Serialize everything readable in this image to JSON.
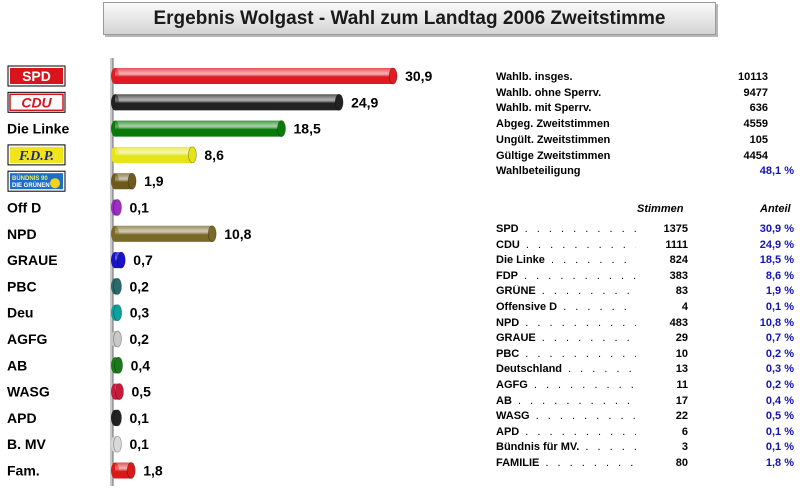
{
  "title": "Ergebnis Wolgast -  Wahl zum Landtag 2006 Zweitstimme",
  "colors": {
    "SPD": "#e01b22",
    "CDU": "#222222",
    "Die Linke": "#0a7a0a",
    "F.D.P.": "#e4e417",
    "Grüne": "#6e5a1e",
    "Off D": "#9b2fbf",
    "NPD": "#7a6a2a",
    "GRAUE": "#1a14c8",
    "PBC": "#2a6a6a",
    "Deu": "#10a0a0",
    "AGFG": "#c8c8c8",
    "AB": "#1a7a1a",
    "WASG": "#c81a3a",
    "APD": "#222222",
    "B. MV": "#d8d8d8",
    "Fam.": "#d81a1a"
  },
  "logos": {
    "spd": "SPD",
    "cdu": "CDU",
    "fdp": "F.D.P.",
    "gruene": "BÜNDNIS 90 DIE GRÜNEN"
  },
  "chart_data": {
    "type": "bar",
    "orientation": "horizontal",
    "categories": [
      "SPD",
      "CDU",
      "Die Linke",
      "F.D.P.",
      "Bündnis 90/Die Grünen",
      "Off D",
      "NPD",
      "GRAUE",
      "PBC",
      "Deu",
      "AGFG",
      "AB",
      "WASG",
      "APD",
      "B. MV",
      "Fam."
    ],
    "category_labels": [
      "",
      "",
      "Die Linke",
      "",
      "",
      "Off D",
      "NPD",
      "GRAUE",
      "PBC",
      "Deu",
      "AGFG",
      "AB",
      "WASG",
      "APD",
      "B. MV",
      "Fam."
    ],
    "value_labels": [
      "30,9",
      "24,9",
      "18,5",
      "8,6",
      "1,9",
      "0,1",
      "10,8",
      "0,7",
      "0,2",
      "0,3",
      "0,2",
      "0,4",
      "0,5",
      "0,1",
      "0,1",
      "1,8"
    ],
    "values": [
      30.9,
      24.9,
      18.5,
      8.6,
      1.9,
      0.1,
      10.8,
      0.7,
      0.2,
      0.3,
      0.2,
      0.4,
      0.5,
      0.1,
      0.1,
      1.8
    ],
    "xlim": [
      0,
      40
    ],
    "title": "Ergebnis Wolgast -  Wahl zum Landtag 2006 Zweitstimme",
    "xlabel": "",
    "ylabel": "",
    "grid": false,
    "legend": "none"
  },
  "stats": [
    {
      "label": "Wahlb. insges.",
      "value": "10113",
      "pct": ""
    },
    {
      "label": "Wahlb. ohne Sperrv.",
      "value": "9477",
      "pct": ""
    },
    {
      "label": "Wahlb. mit Sperrv.",
      "value": "636",
      "pct": ""
    },
    {
      "label": "Abgeg. Zweitstimmen",
      "value": "4559",
      "pct": ""
    },
    {
      "label": "Ungült. Zweitstimmen",
      "value": "105",
      "pct": ""
    },
    {
      "label": "Gültige Zweitstimmen",
      "value": "4454",
      "pct": ""
    },
    {
      "label": "Wahlbeteiligung",
      "value": "",
      "pct": "48,1 %"
    }
  ],
  "table": {
    "header_votes": "Stimmen",
    "header_share": "Anteil",
    "rows": [
      {
        "party": "SPD",
        "votes": "1375",
        "share": "30,9 %"
      },
      {
        "party": "CDU",
        "votes": "1111",
        "share": "24,9 %"
      },
      {
        "party": "Die Linke",
        "votes": "824",
        "share": "18,5 %"
      },
      {
        "party": "FDP",
        "votes": "383",
        "share": "8,6 %"
      },
      {
        "party": "GRÜNE",
        "votes": "83",
        "share": "1,9 %"
      },
      {
        "party": "Offensive D",
        "votes": "4",
        "share": "0,1 %"
      },
      {
        "party": "NPD",
        "votes": "483",
        "share": "10,8 %"
      },
      {
        "party": "GRAUE",
        "votes": "29",
        "share": "0,7 %"
      },
      {
        "party": "PBC",
        "votes": "10",
        "share": "0,2 %"
      },
      {
        "party": "Deutschland",
        "votes": "13",
        "share": "0,3 %"
      },
      {
        "party": "AGFG",
        "votes": "11",
        "share": "0,2 %"
      },
      {
        "party": "AB",
        "votes": "17",
        "share": "0,4 %"
      },
      {
        "party": "WASG",
        "votes": "22",
        "share": "0,5 %"
      },
      {
        "party": "APD",
        "votes": "6",
        "share": "0,1 %"
      },
      {
        "party": "Bündnis für MV.",
        "votes": "3",
        "share": "0,1 %"
      },
      {
        "party": "FAMILIE",
        "votes": "80",
        "share": "1,8 %"
      }
    ]
  }
}
